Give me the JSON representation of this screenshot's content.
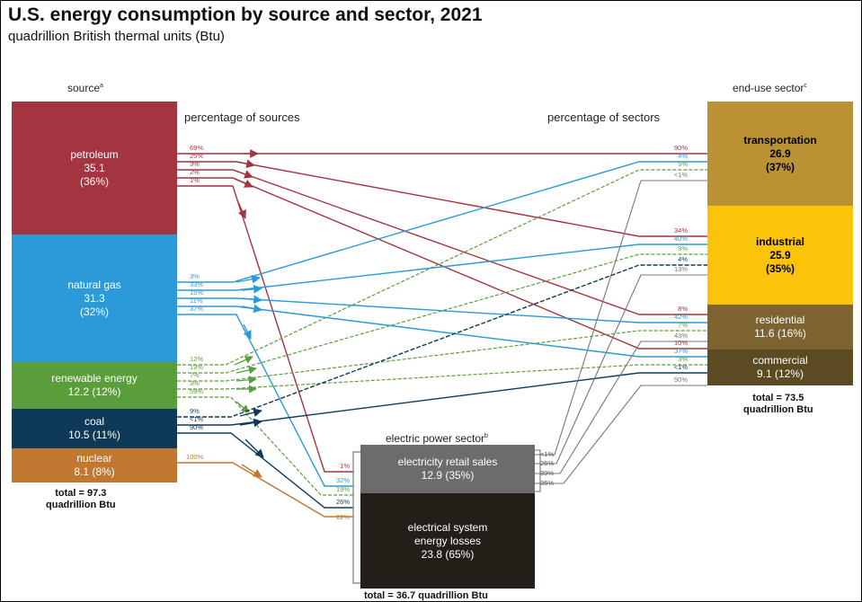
{
  "title": "U.S. energy consumption by source and sector, 2021",
  "subtitle": "quadrillion British thermal units (Btu)",
  "source_header": "source",
  "source_header_sup": "a",
  "sector_header": "end-use sector",
  "sector_header_sup": "c",
  "pct_sources_label": "percentage of sources",
  "pct_sectors_label": "percentage of sectors",
  "electric_header": "electric power sector",
  "electric_header_sup": "b",
  "sources": {
    "petroleum": {
      "name": "petroleum",
      "value": "35.1",
      "share": "(36%)",
      "color": "#a4343f"
    },
    "natural_gas": {
      "name": "natural gas",
      "value": "31.3",
      "share": "(32%)",
      "color": "#2a9bd8"
    },
    "renewable": {
      "name": "renewable energy",
      "value": "12.2 (12%)",
      "color": "#5a9e3c"
    },
    "coal": {
      "name": "coal",
      "value": "10.5 (11%)",
      "color": "#0f3a57"
    },
    "nuclear": {
      "name": "nuclear",
      "value": "8.1 (8%)",
      "color": "#c07830"
    }
  },
  "source_total": {
    "line1": "total = 97.3",
    "line2": "quadrillion Btu"
  },
  "sectors": {
    "transportation": {
      "name": "transportation",
      "value": "26.9",
      "share": "(37%)",
      "color": "#bb9233"
    },
    "industrial": {
      "name": "industrial",
      "value": "25.9",
      "share": "(35%)",
      "color": "#fbc30a"
    },
    "residential": {
      "name": "residential",
      "value": "11.6 (16%)",
      "color": "#7d6330"
    },
    "commercial": {
      "name": "commercial",
      "value": "9.1 (12%)",
      "color": "#5c4a22"
    }
  },
  "sector_total": {
    "line1": "total = 73.5",
    "line2": "quadrillion Btu"
  },
  "electric": {
    "retail": {
      "name": "electricity retail sales",
      "value": "12.9 (35%)",
      "color": "#6c6c6c"
    },
    "losses": {
      "line1": "electrical system",
      "line2": "energy losses",
      "value": "23.8 (65%)",
      "color": "#241e18"
    },
    "total": "total = 36.7 quadrillion Btu"
  },
  "labels": {
    "pet_src": [
      "69%",
      "25%",
      "3%",
      "2%",
      "1%"
    ],
    "gas_src": [
      "3%",
      "33%",
      "15%",
      "11%",
      "37%"
    ],
    "ren_src": [
      "12%",
      "19%",
      "7%",
      "3%",
      "59%"
    ],
    "coal_src": [
      "9%",
      "<1%",
      "90%"
    ],
    "nuc_src": [
      "100%"
    ],
    "trans_dst": [
      "90%",
      "4%",
      "5%",
      "<1%"
    ],
    "ind_dst": [
      "34%",
      "40%",
      "9%",
      "4%",
      "13%"
    ],
    "res_dst": [
      "8%",
      "42%",
      "7%",
      "43%"
    ],
    "com_dst": [
      "10%",
      "37%",
      "3%",
      "<1%",
      "50%"
    ],
    "elec_in": [
      "1%",
      "32%",
      "19%",
      "26%",
      "22%"
    ],
    "elec_out": [
      "<1%",
      "26%",
      "39%",
      "35%"
    ]
  }
}
